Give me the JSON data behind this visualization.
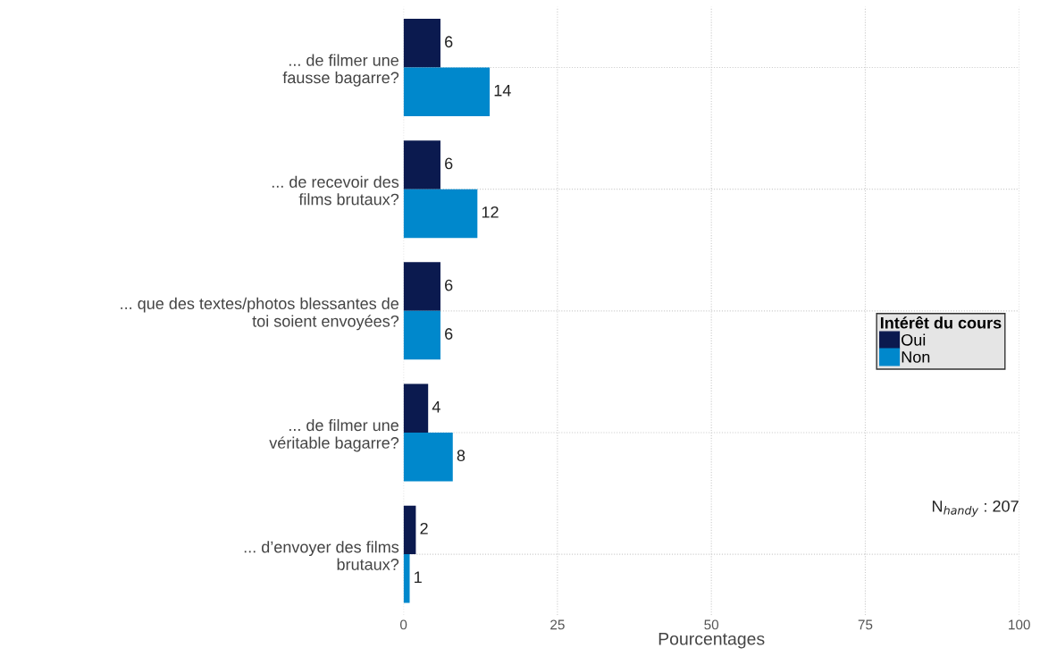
{
  "chart_data": {
    "type": "bar",
    "orientation": "horizontal",
    "categories": [
      "... de filmer une\nfausse bagarre?",
      "... de recevoir des\nfilms brutaux?",
      "... que des textes/photos blessantes de\ntoi soient envoyées?",
      "... de filmer une\nvéritable bagarre?",
      "... d’envoyer des films\nbrutaux?"
    ],
    "series": [
      {
        "name": "Oui",
        "color": "#0b1a4f",
        "values": [
          6,
          6,
          6,
          4,
          2
        ]
      },
      {
        "name": "Non",
        "color": "#0088cc",
        "values": [
          14,
          12,
          6,
          8,
          1
        ]
      }
    ],
    "xlim": [
      0,
      100
    ],
    "xticks": [
      0,
      25,
      50,
      75,
      100
    ],
    "xlabel": "Pourcentages",
    "legend_title": "Intérêt du cours",
    "legend": "right",
    "grid": true,
    "data_labels": true,
    "annotations": [
      "N$_{handy}$ : 207"
    ]
  }
}
